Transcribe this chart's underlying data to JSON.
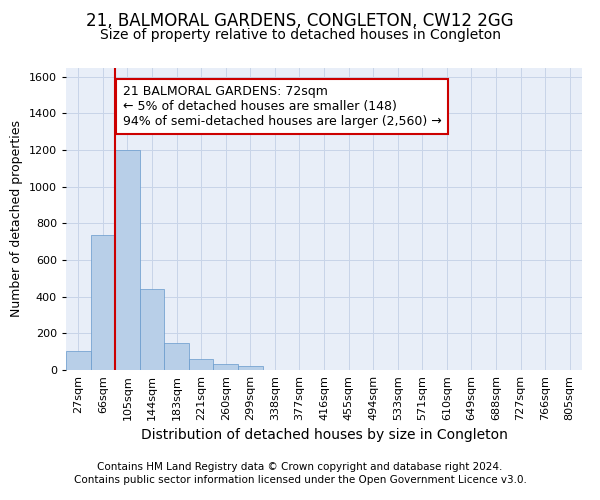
{
  "title": "21, BALMORAL GARDENS, CONGLETON, CW12 2GG",
  "subtitle": "Size of property relative to detached houses in Congleton",
  "xlabel": "Distribution of detached houses by size in Congleton",
  "ylabel": "Number of detached properties",
  "bar_labels": [
    "27sqm",
    "66sqm",
    "105sqm",
    "144sqm",
    "183sqm",
    "221sqm",
    "260sqm",
    "299sqm",
    "338sqm",
    "377sqm",
    "416sqm",
    "455sqm",
    "494sqm",
    "533sqm",
    "571sqm",
    "610sqm",
    "649sqm",
    "688sqm",
    "727sqm",
    "766sqm",
    "805sqm"
  ],
  "bar_heights": [
    105,
    735,
    1200,
    440,
    145,
    60,
    35,
    20,
    0,
    0,
    0,
    0,
    0,
    0,
    0,
    0,
    0,
    0,
    0,
    0,
    0
  ],
  "bar_color": "#b8cfe8",
  "bar_edge_color": "#6699cc",
  "grid_color": "#c8d4e8",
  "background_color": "#e8eef8",
  "vline_x": 1.5,
  "vline_color": "#cc0000",
  "annotation_line1": "21 BALMORAL GARDENS: 72sqm",
  "annotation_line2": "← 5% of detached houses are smaller (148)",
  "annotation_line3": "94% of semi-detached houses are larger (2,560) →",
  "footer_line1": "Contains HM Land Registry data © Crown copyright and database right 2024.",
  "footer_line2": "Contains public sector information licensed under the Open Government Licence v3.0.",
  "ylim": [
    0,
    1650
  ],
  "yticks": [
    0,
    200,
    400,
    600,
    800,
    1000,
    1200,
    1400,
    1600
  ],
  "title_fontsize": 12,
  "subtitle_fontsize": 10,
  "xlabel_fontsize": 10,
  "ylabel_fontsize": 9,
  "tick_fontsize": 8,
  "annotation_fontsize": 9,
  "footer_fontsize": 7.5
}
